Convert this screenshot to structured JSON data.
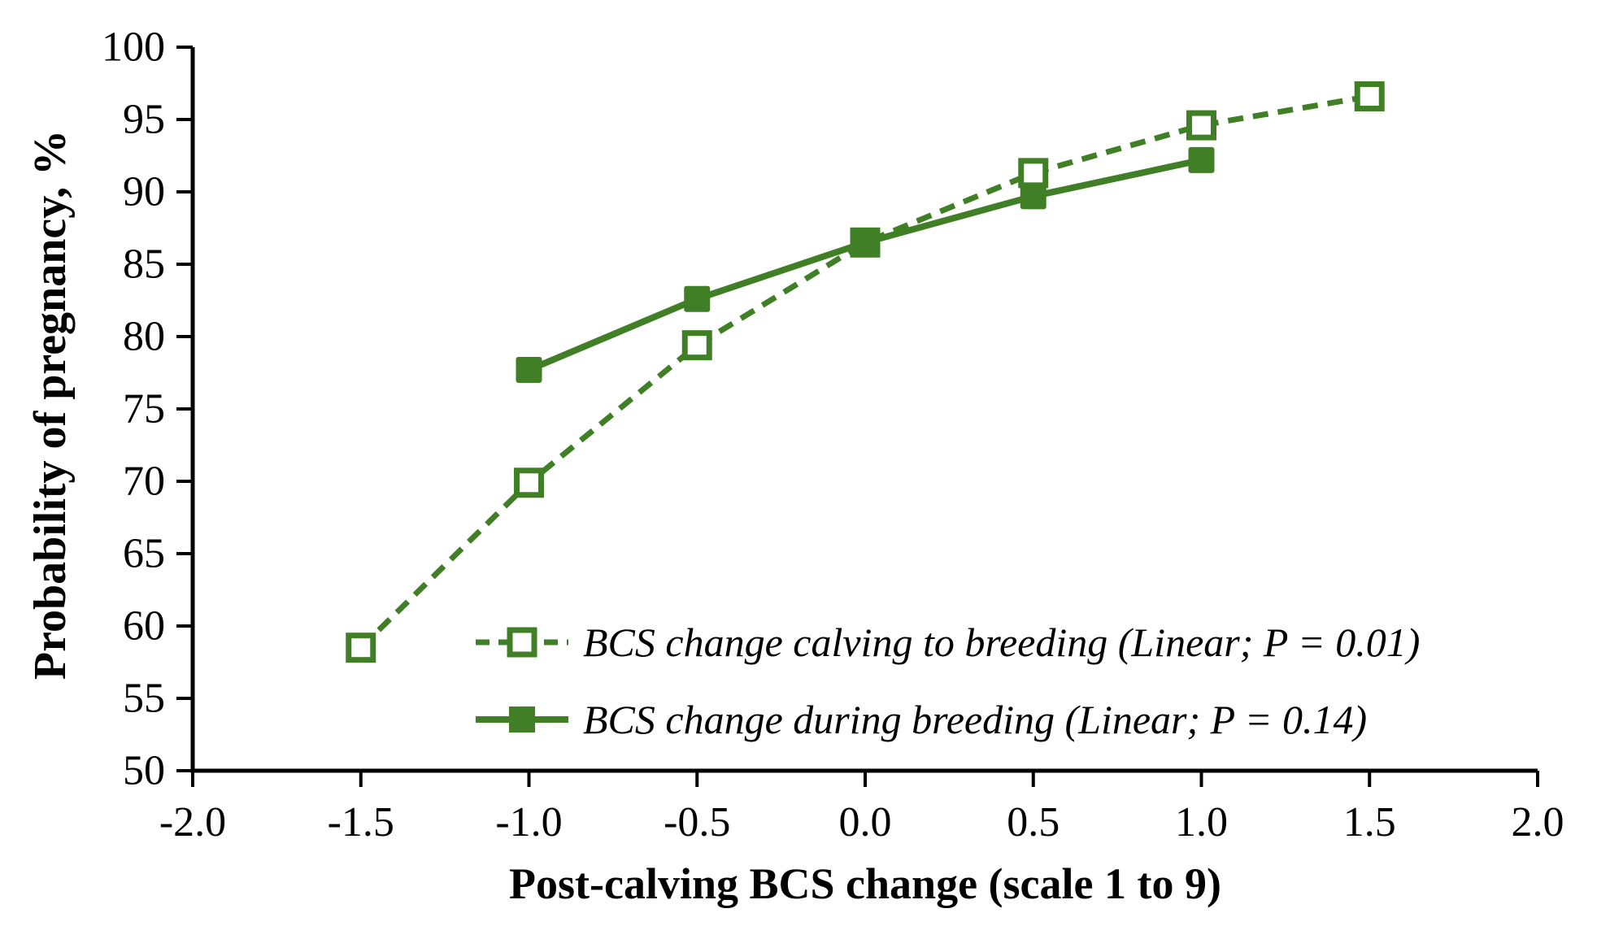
{
  "figure": {
    "background": "#ffffff",
    "axis_color": "#000000",
    "accent_green": "#417f27"
  },
  "chart_data": {
    "type": "line",
    "title": "",
    "xlabel": "Post-calving BCS change (scale 1 to 9)",
    "ylabel": "Probability of pregnancy, %",
    "xlim": [
      -2.0,
      2.0
    ],
    "ylim": [
      50,
      100
    ],
    "xticks": [
      "-2.0",
      "-1.5",
      "-1.0",
      "-0.5",
      "0.0",
      "0.5",
      "1.0",
      "1.5",
      "2.0"
    ],
    "xtick_values": [
      -2.0,
      -1.5,
      -1.0,
      -0.5,
      0.0,
      0.5,
      1.0,
      1.5,
      2.0
    ],
    "yticks": [
      "50",
      "55",
      "60",
      "65",
      "70",
      "75",
      "80",
      "85",
      "90",
      "95",
      "100"
    ],
    "ytick_values": [
      50,
      55,
      60,
      65,
      70,
      75,
      80,
      85,
      90,
      95,
      100
    ],
    "grid": false,
    "legend_position": "inside-bottom-center",
    "series": [
      {
        "name": "BCS change calving to breeding (Linear; P = 0.01)",
        "line_style": "dashed",
        "marker": "open-square",
        "color": "#417f27",
        "x": [
          -1.5,
          -1.0,
          -0.5,
          0.0,
          0.5,
          1.0,
          1.5
        ],
        "y": [
          58.5,
          69.9,
          79.4,
          86.5,
          91.3,
          94.6,
          96.6
        ]
      },
      {
        "name": "BCS change during breeding (Linear; P = 0.14)",
        "line_style": "solid",
        "marker": "filled-square",
        "color": "#417f27",
        "x": [
          -1.0,
          -0.5,
          0.0,
          0.5,
          1.0
        ],
        "y": [
          77.7,
          82.6,
          86.5,
          89.7,
          92.2
        ]
      }
    ]
  }
}
